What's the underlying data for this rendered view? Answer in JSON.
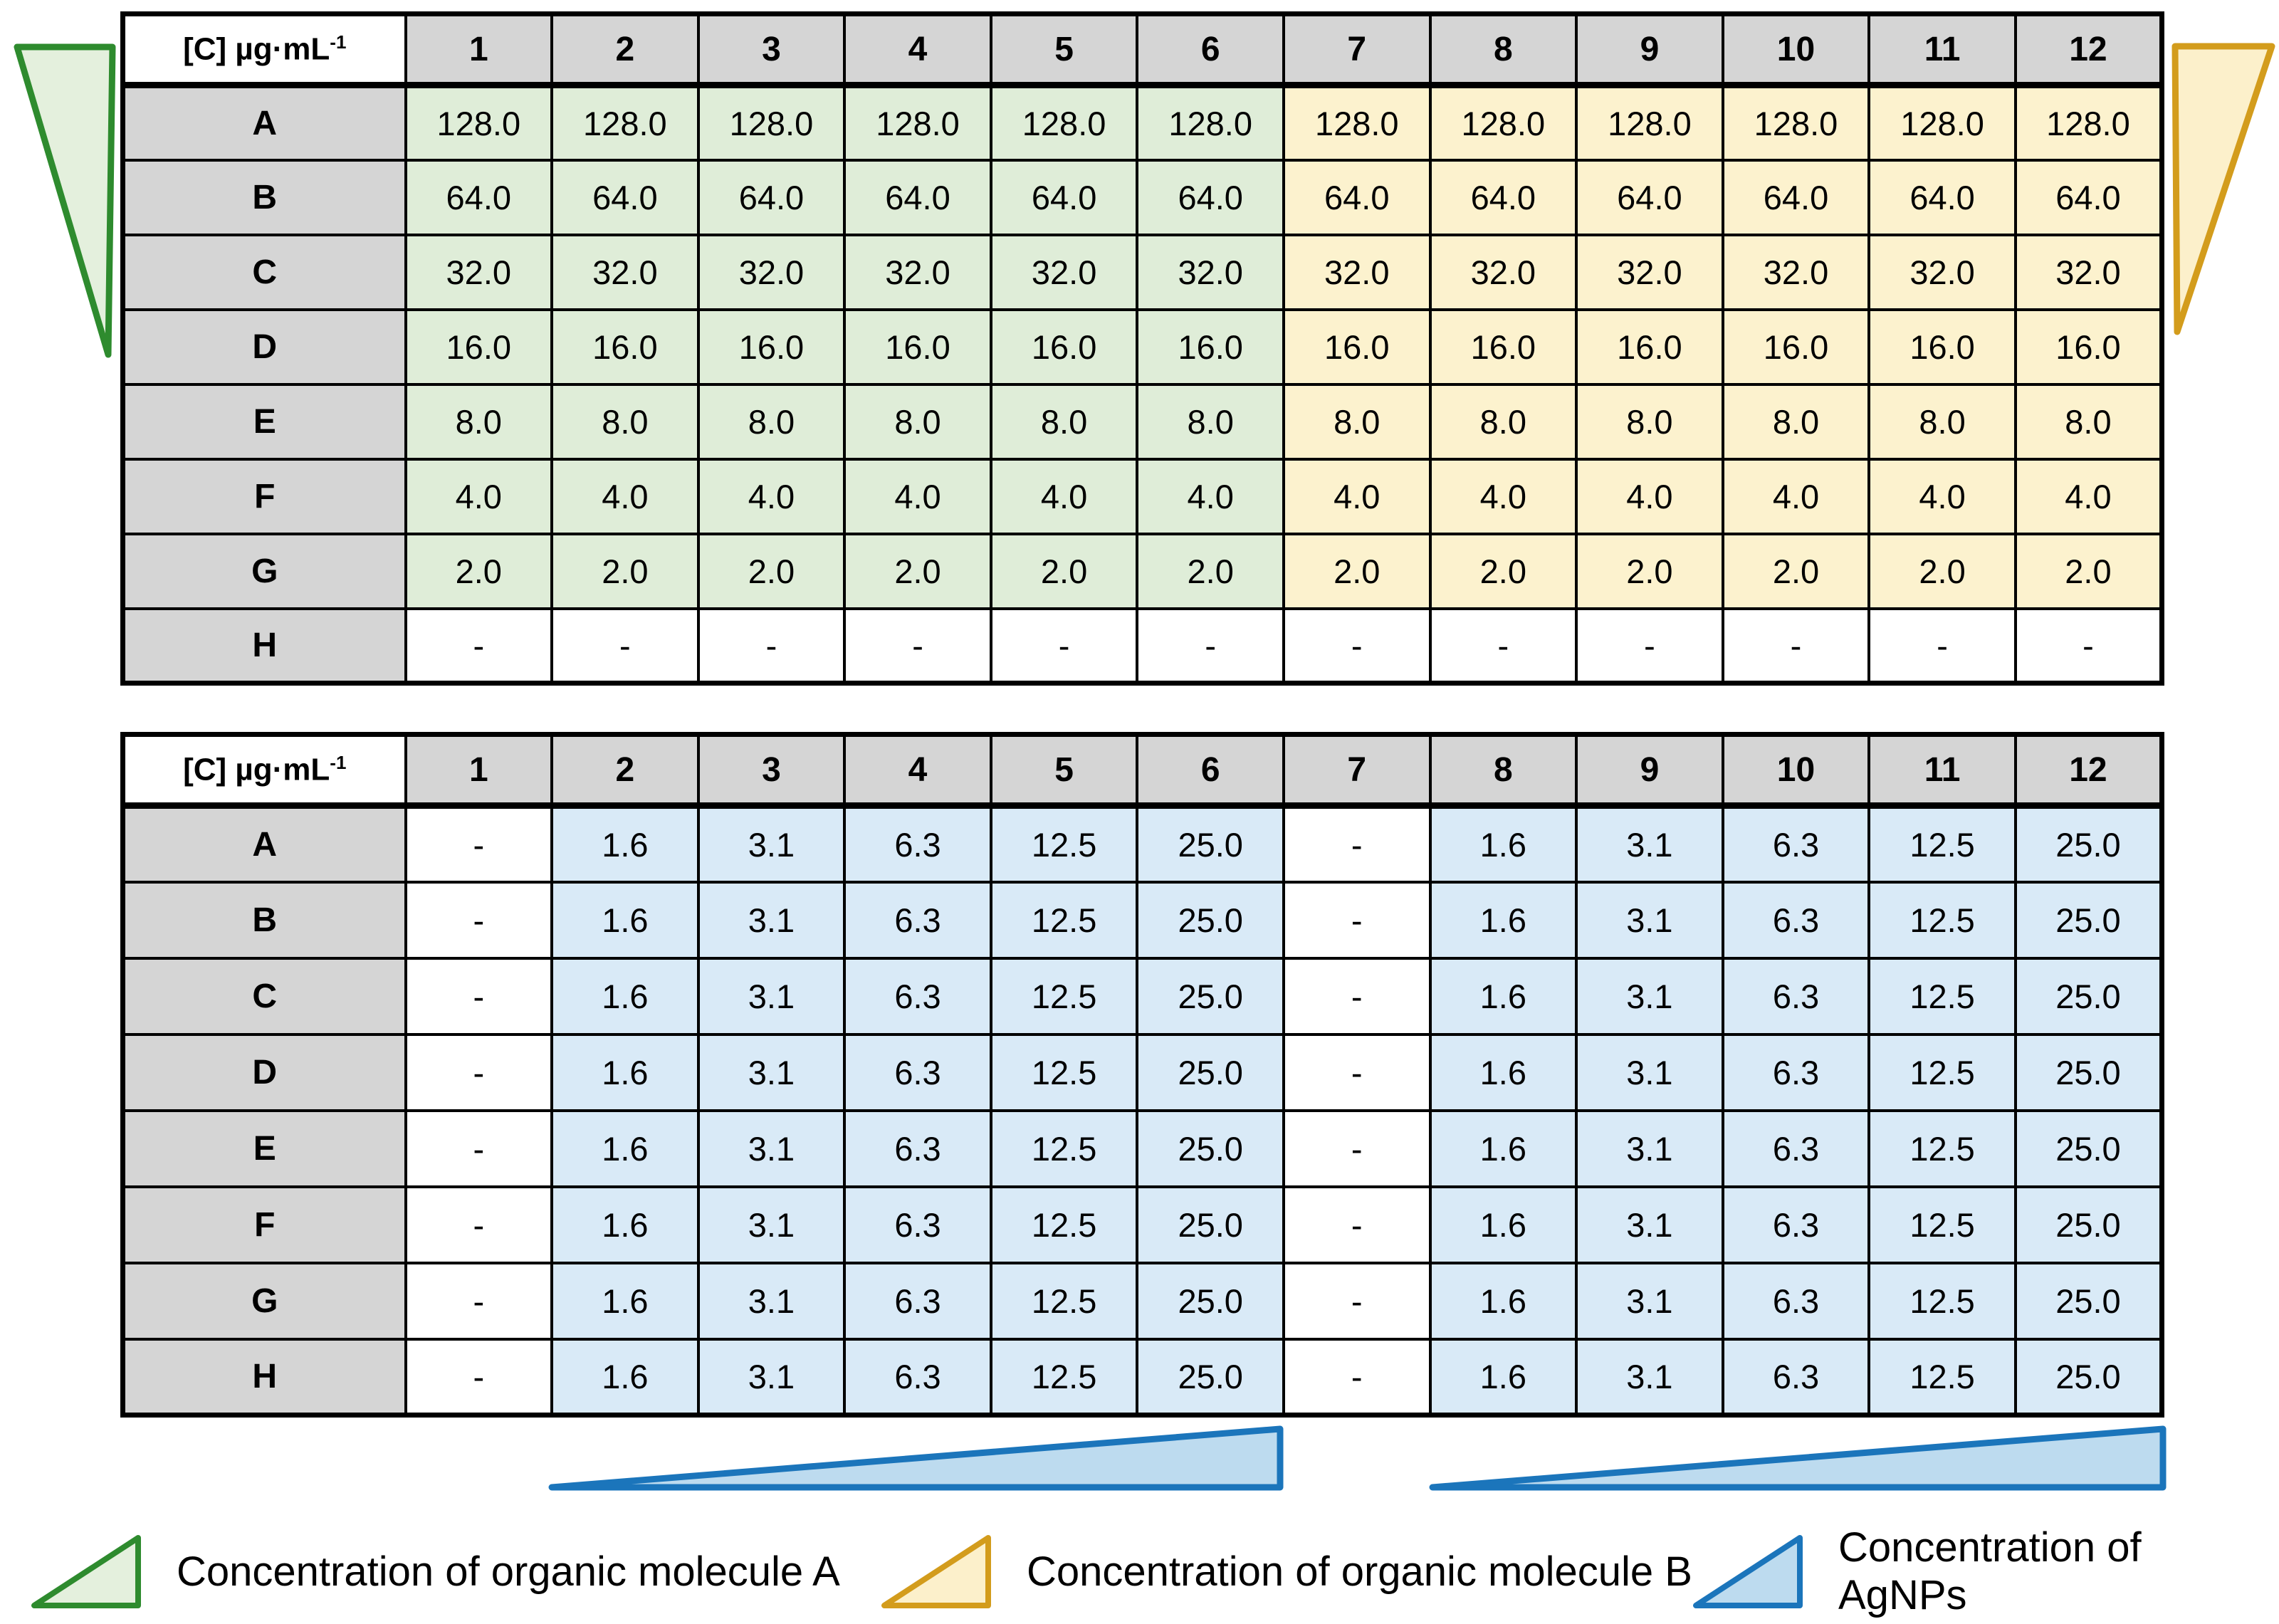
{
  "colors": {
    "cell_green": "#DFEDD8",
    "cell_yellow": "#FCF2CE",
    "cell_blue": "#D9EAF7",
    "header_gray": "#D5D5D5",
    "cell_white": "#FFFFFF",
    "wedge_green_fill": "#E4F0DD",
    "wedge_green_stroke": "#2E8B2E",
    "wedge_yellow_fill": "#FCF0CB",
    "wedge_yellow_stroke": "#D39C1C",
    "ramp_blue_fill": "#BDDBEF",
    "ramp_blue_stroke": "#1B75BB",
    "grid_line": "#000000"
  },
  "plates": [
    {
      "name": "top-plate",
      "corner_label": "[C] µg·mL",
      "corner_sup": "-1",
      "columns": [
        "1",
        "2",
        "3",
        "4",
        "5",
        "6",
        "7",
        "8",
        "9",
        "10",
        "11",
        "12"
      ],
      "rows": [
        {
          "label": "A",
          "values": [
            "128.0",
            "128.0",
            "128.0",
            "128.0",
            "128.0",
            "128.0",
            "128.0",
            "128.0",
            "128.0",
            "128.0",
            "128.0",
            "128.0"
          ]
        },
        {
          "label": "B",
          "values": [
            "64.0",
            "64.0",
            "64.0",
            "64.0",
            "64.0",
            "64.0",
            "64.0",
            "64.0",
            "64.0",
            "64.0",
            "64.0",
            "64.0"
          ]
        },
        {
          "label": "C",
          "values": [
            "32.0",
            "32.0",
            "32.0",
            "32.0",
            "32.0",
            "32.0",
            "32.0",
            "32.0",
            "32.0",
            "32.0",
            "32.0",
            "32.0"
          ]
        },
        {
          "label": "D",
          "values": [
            "16.0",
            "16.0",
            "16.0",
            "16.0",
            "16.0",
            "16.0",
            "16.0",
            "16.0",
            "16.0",
            "16.0",
            "16.0",
            "16.0"
          ]
        },
        {
          "label": "E",
          "values": [
            "8.0",
            "8.0",
            "8.0",
            "8.0",
            "8.0",
            "8.0",
            "8.0",
            "8.0",
            "8.0",
            "8.0",
            "8.0",
            "8.0"
          ]
        },
        {
          "label": "F",
          "values": [
            "4.0",
            "4.0",
            "4.0",
            "4.0",
            "4.0",
            "4.0",
            "4.0",
            "4.0",
            "4.0",
            "4.0",
            "4.0",
            "4.0"
          ]
        },
        {
          "label": "G",
          "values": [
            "2.0",
            "2.0",
            "2.0",
            "2.0",
            "2.0",
            "2.0",
            "2.0",
            "2.0",
            "2.0",
            "2.0",
            "2.0",
            "2.0"
          ]
        },
        {
          "label": "H",
          "values": [
            "-",
            "-",
            "-",
            "-",
            "-",
            "-",
            "-",
            "-",
            "-",
            "-",
            "-",
            "-"
          ]
        }
      ],
      "zones": {
        "green_columns": [
          1,
          2,
          3,
          4,
          5,
          6
        ],
        "yellow_columns": [
          7,
          8,
          9,
          10,
          11,
          12
        ],
        "blank_rows": [
          "H"
        ]
      }
    },
    {
      "name": "bottom-plate",
      "corner_label": "[C] µg·mL",
      "corner_sup": "-1",
      "columns": [
        "1",
        "2",
        "3",
        "4",
        "5",
        "6",
        "7",
        "8",
        "9",
        "10",
        "11",
        "12"
      ],
      "rows": [
        {
          "label": "A",
          "values": [
            "-",
            "1.6",
            "3.1",
            "6.3",
            "12.5",
            "25.0",
            "-",
            "1.6",
            "3.1",
            "6.3",
            "12.5",
            "25.0"
          ]
        },
        {
          "label": "B",
          "values": [
            "-",
            "1.6",
            "3.1",
            "6.3",
            "12.5",
            "25.0",
            "-",
            "1.6",
            "3.1",
            "6.3",
            "12.5",
            "25.0"
          ]
        },
        {
          "label": "C",
          "values": [
            "-",
            "1.6",
            "3.1",
            "6.3",
            "12.5",
            "25.0",
            "-",
            "1.6",
            "3.1",
            "6.3",
            "12.5",
            "25.0"
          ]
        },
        {
          "label": "D",
          "values": [
            "-",
            "1.6",
            "3.1",
            "6.3",
            "12.5",
            "25.0",
            "-",
            "1.6",
            "3.1",
            "6.3",
            "12.5",
            "25.0"
          ]
        },
        {
          "label": "E",
          "values": [
            "-",
            "1.6",
            "3.1",
            "6.3",
            "12.5",
            "25.0",
            "-",
            "1.6",
            "3.1",
            "6.3",
            "12.5",
            "25.0"
          ]
        },
        {
          "label": "F",
          "values": [
            "-",
            "1.6",
            "3.1",
            "6.3",
            "12.5",
            "25.0",
            "-",
            "1.6",
            "3.1",
            "6.3",
            "12.5",
            "25.0"
          ]
        },
        {
          "label": "G",
          "values": [
            "-",
            "1.6",
            "3.1",
            "6.3",
            "12.5",
            "25.0",
            "-",
            "1.6",
            "3.1",
            "6.3",
            "12.5",
            "25.0"
          ]
        },
        {
          "label": "H",
          "values": [
            "-",
            "1.6",
            "3.1",
            "6.3",
            "12.5",
            "25.0",
            "-",
            "1.6",
            "3.1",
            "6.3",
            "12.5",
            "25.0"
          ]
        }
      ],
      "zones": {
        "blank_columns": [
          1,
          7
        ],
        "blue_columns": [
          2,
          3,
          4,
          5,
          6,
          8,
          9,
          10,
          11,
          12
        ]
      }
    }
  ],
  "legend": {
    "items": [
      {
        "icon": "green-triangle-icon",
        "label": "Concentration of organic molecule A"
      },
      {
        "icon": "yellow-triangle-icon",
        "label": "Concentration of organic molecule B"
      },
      {
        "icon": "blue-triangle-icon",
        "label": "Concentration of AgNPs"
      }
    ]
  }
}
